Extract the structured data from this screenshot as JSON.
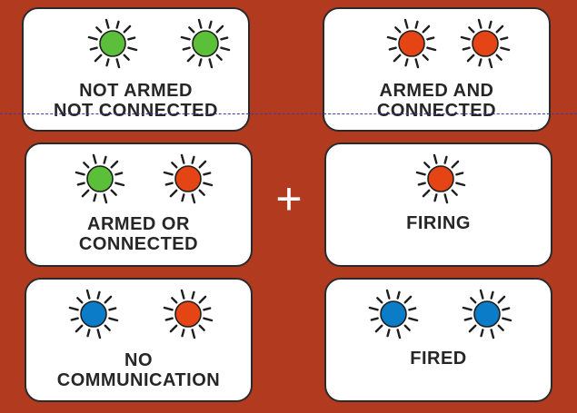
{
  "colors": {
    "background": "#b23a1f",
    "green": "#5cbf3a",
    "red": "#e54514",
    "blue": "#0a7cc8",
    "guide": "#3b3bb0"
  },
  "plus_symbol": "+",
  "cards": [
    {
      "id": "not-armed",
      "lights": [
        "green",
        "green"
      ],
      "label_lines": [
        "NOT ARMED",
        "NOT CONNECTED"
      ]
    },
    {
      "id": "armed-and-connected",
      "lights": [
        "red",
        "red"
      ],
      "label_lines": [
        "ARMED AND",
        "CONNECTED"
      ]
    },
    {
      "id": "armed-or-connected",
      "lights": [
        "green",
        "red"
      ],
      "label_lines": [
        "ARMED OR",
        "CONNECTED"
      ]
    },
    {
      "id": "firing",
      "lights": [
        "red"
      ],
      "label_lines": [
        "FIRING"
      ]
    },
    {
      "id": "no-communication",
      "lights": [
        "blue",
        "red"
      ],
      "label_lines": [
        "NO",
        "COMMUNICATION"
      ]
    },
    {
      "id": "fired",
      "lights": [
        "blue",
        "blue"
      ],
      "label_lines": [
        "FIRED"
      ]
    }
  ]
}
